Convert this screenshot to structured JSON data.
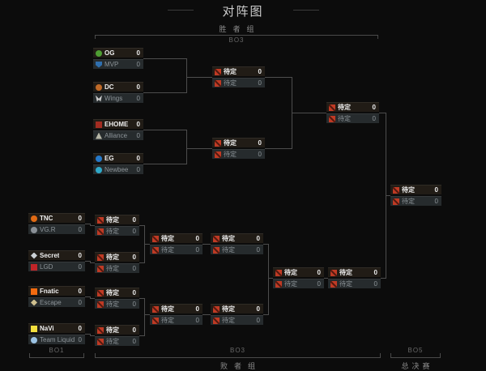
{
  "header": {
    "title": "对阵图"
  },
  "sections": {
    "upper": {
      "group_label": "胜者组",
      "format_label": "BO3"
    },
    "lower": {
      "group_label": "败者组",
      "format_label": "BO3",
      "round1_format_label": "BO1"
    },
    "final": {
      "group_label": "总决赛",
      "format_label": "BO5"
    }
  },
  "colors": {
    "background": "#0c0c0c",
    "connector": "#4d4d4d",
    "slot_top_bg": "#211c16",
    "slot_bottom_bg": "#262b2d",
    "tbd_red": "#bf3a24"
  },
  "matches": {
    "wb_r1_m1": {
      "slots": [
        {
          "name": "OG",
          "score": "0",
          "icon": "og-logo-icon",
          "color": "#4e9e33",
          "shape": "circle"
        },
        {
          "name": "MVP",
          "score": "0",
          "icon": "mvp-logo-icon",
          "color": "#2f6fae",
          "shape": "shield"
        }
      ]
    },
    "wb_r1_m2": {
      "slots": [
        {
          "name": "DC",
          "score": "0",
          "icon": "dc-logo-icon",
          "color": "#c06a28",
          "shape": "circle"
        },
        {
          "name": "Wings",
          "score": "0",
          "icon": "wings-logo-icon",
          "color": "#cccccc",
          "shape": "wings"
        }
      ]
    },
    "wb_r1_m3": {
      "slots": [
        {
          "name": "EHOME",
          "score": "0",
          "icon": "ehome-logo-icon",
          "color": "#a32c21",
          "shape": "square"
        },
        {
          "name": "Alliance",
          "score": "0",
          "icon": "alliance-logo-icon",
          "color": "#b5b5a5",
          "shape": "triangle"
        }
      ]
    },
    "wb_r1_m4": {
      "slots": [
        {
          "name": "EG",
          "score": "0",
          "icon": "eg-logo-icon",
          "color": "#2679c8",
          "shape": "circle"
        },
        {
          "name": "Newbee",
          "score": "0",
          "icon": "newbee-logo-icon",
          "color": "#2fa8c8",
          "shape": "circle"
        }
      ]
    },
    "wb_r2_m1": {
      "slots": [
        {
          "name": "待定",
          "score": "0",
          "icon": "tbd-logo-icon",
          "color": "#bf3a24",
          "shape": "slash"
        },
        {
          "name": "待定",
          "score": "0",
          "icon": "tbd-logo-icon",
          "color": "#bf3a24",
          "shape": "slash"
        }
      ]
    },
    "wb_r2_m2": {
      "slots": [
        {
          "name": "待定",
          "score": "0",
          "icon": "tbd-logo-icon",
          "color": "#bf3a24",
          "shape": "slash"
        },
        {
          "name": "待定",
          "score": "0",
          "icon": "tbd-logo-icon",
          "color": "#bf3a24",
          "shape": "slash"
        }
      ]
    },
    "wb_final": {
      "slots": [
        {
          "name": "待定",
          "score": "0",
          "icon": "tbd-logo-icon",
          "color": "#bf3a24",
          "shape": "slash"
        },
        {
          "name": "待定",
          "score": "0",
          "icon": "tbd-logo-icon",
          "color": "#bf3a24",
          "shape": "slash"
        }
      ]
    },
    "grand_final": {
      "slots": [
        {
          "name": "待定",
          "score": "0",
          "icon": "tbd-logo-icon",
          "color": "#bf3a24",
          "shape": "slash"
        },
        {
          "name": "待定",
          "score": "0",
          "icon": "tbd-logo-icon",
          "color": "#bf3a24",
          "shape": "slash"
        }
      ]
    },
    "lb_r1_m1": {
      "slots": [
        {
          "name": "TNC",
          "score": "0",
          "icon": "tnc-logo-icon",
          "color": "#e06a14",
          "shape": "circle"
        },
        {
          "name": "VG.R",
          "score": "0",
          "icon": "vg-r-logo-icon",
          "color": "#8a9096",
          "shape": "circle"
        }
      ]
    },
    "lb_r1_m2": {
      "slots": [
        {
          "name": "Secret",
          "score": "0",
          "icon": "secret-logo-icon",
          "color": "#cdd2d6",
          "shape": "diamond"
        },
        {
          "name": "LGD",
          "score": "0",
          "icon": "lgd-logo-icon",
          "color": "#c02428",
          "shape": "square"
        }
      ]
    },
    "lb_r1_m3": {
      "slots": [
        {
          "name": "Fnatic",
          "score": "0",
          "icon": "fnatic-logo-icon",
          "color": "#f26a0f",
          "shape": "square"
        },
        {
          "name": "Escape",
          "score": "0",
          "icon": "escape-logo-icon",
          "color": "#cfc08f",
          "shape": "diamond"
        }
      ]
    },
    "lb_r1_m4": {
      "slots": [
        {
          "name": "NaVi",
          "score": "0",
          "icon": "navi-logo-icon",
          "color": "#f3df3d",
          "shape": "square"
        },
        {
          "name": "Team Liquid",
          "score": "0",
          "icon": "team-liquid-logo-icon",
          "color": "#9cc3e4",
          "shape": "circle"
        }
      ]
    },
    "lb_r2_m1": {
      "slots": [
        {
          "name": "待定",
          "score": "0",
          "icon": "tbd-logo-icon",
          "color": "#bf3a24",
          "shape": "slash"
        },
        {
          "name": "待定",
          "score": "0",
          "icon": "tbd-logo-icon",
          "color": "#bf3a24",
          "shape": "slash"
        }
      ]
    },
    "lb_r2_m2": {
      "slots": [
        {
          "name": "待定",
          "score": "0",
          "icon": "tbd-logo-icon",
          "color": "#bf3a24",
          "shape": "slash"
        },
        {
          "name": "待定",
          "score": "0",
          "icon": "tbd-logo-icon",
          "color": "#bf3a24",
          "shape": "slash"
        }
      ]
    },
    "lb_r2_m3": {
      "slots": [
        {
          "name": "待定",
          "score": "0",
          "icon": "tbd-logo-icon",
          "color": "#bf3a24",
          "shape": "slash"
        },
        {
          "name": "待定",
          "score": "0",
          "icon": "tbd-logo-icon",
          "color": "#bf3a24",
          "shape": "slash"
        }
      ]
    },
    "lb_r2_m4": {
      "slots": [
        {
          "name": "待定",
          "score": "0",
          "icon": "tbd-logo-icon",
          "color": "#bf3a24",
          "shape": "slash"
        },
        {
          "name": "待定",
          "score": "0",
          "icon": "tbd-logo-icon",
          "color": "#bf3a24",
          "shape": "slash"
        }
      ]
    },
    "lb_r3_m1": {
      "slots": [
        {
          "name": "待定",
          "score": "0",
          "icon": "tbd-logo-icon",
          "color": "#bf3a24",
          "shape": "slash"
        },
        {
          "name": "待定",
          "score": "0",
          "icon": "tbd-logo-icon",
          "color": "#bf3a24",
          "shape": "slash"
        }
      ]
    },
    "lb_r3_m2": {
      "slots": [
        {
          "name": "待定",
          "score": "0",
          "icon": "tbd-logo-icon",
          "color": "#bf3a24",
          "shape": "slash"
        },
        {
          "name": "待定",
          "score": "0",
          "icon": "tbd-logo-icon",
          "color": "#bf3a24",
          "shape": "slash"
        }
      ]
    },
    "lb_r4_m1": {
      "slots": [
        {
          "name": "待定",
          "score": "0",
          "icon": "tbd-logo-icon",
          "color": "#bf3a24",
          "shape": "slash"
        },
        {
          "name": "待定",
          "score": "0",
          "icon": "tbd-logo-icon",
          "color": "#bf3a24",
          "shape": "slash"
        }
      ]
    },
    "lb_r4_m2": {
      "slots": [
        {
          "name": "待定",
          "score": "0",
          "icon": "tbd-logo-icon",
          "color": "#bf3a24",
          "shape": "slash"
        },
        {
          "name": "待定",
          "score": "0",
          "icon": "tbd-logo-icon",
          "color": "#bf3a24",
          "shape": "slash"
        }
      ]
    },
    "lb_r5_m1": {
      "slots": [
        {
          "name": "待定",
          "score": "0",
          "icon": "tbd-logo-icon",
          "color": "#bf3a24",
          "shape": "slash"
        },
        {
          "name": "待定",
          "score": "0",
          "icon": "tbd-logo-icon",
          "color": "#bf3a24",
          "shape": "slash"
        }
      ]
    },
    "lb_final": {
      "slots": [
        {
          "name": "待定",
          "score": "0",
          "icon": "tbd-logo-icon",
          "color": "#bf3a24",
          "shape": "slash"
        },
        {
          "name": "待定",
          "score": "0",
          "icon": "tbd-logo-icon",
          "color": "#bf3a24",
          "shape": "slash"
        }
      ]
    }
  }
}
